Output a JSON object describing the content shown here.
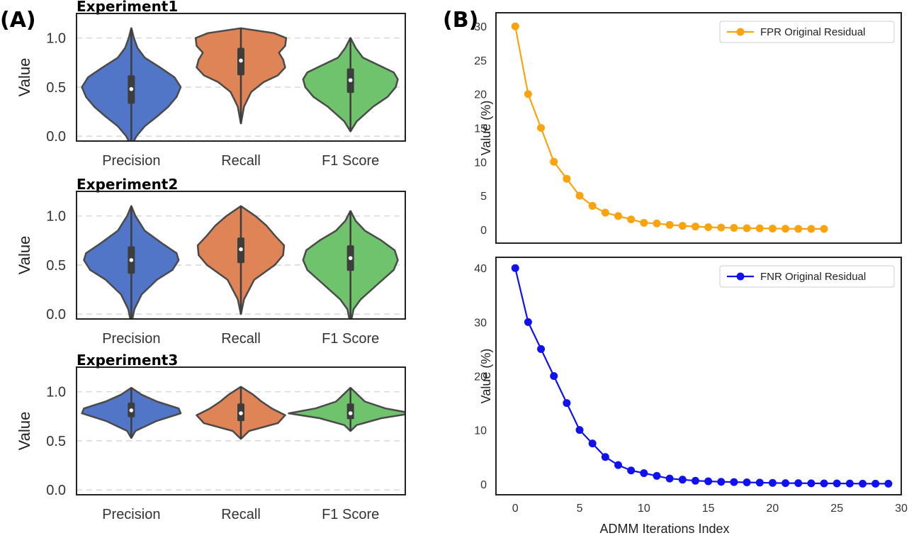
{
  "panels": {
    "a_label": "(A)",
    "b_label": "(B)"
  },
  "colors": {
    "precision": "#5176c8",
    "recall": "#de8456",
    "f1": "#70c36d",
    "violin_edge": "#4a4a4a",
    "box": "#3d3d3d",
    "fpr": "#f9a40e",
    "fnr": "#1010f0",
    "grid": "#d8d8d8"
  },
  "chart_data": [
    {
      "type": "violin",
      "title": "Experiment1",
      "ylabel": "Value",
      "categories": [
        "Precision",
        "Recall",
        "F1 Score"
      ],
      "yticks": [
        "0.0",
        "0.5",
        "1.0"
      ],
      "ylim": [
        -0.05,
        1.25
      ],
      "grid": true,
      "series": [
        {
          "category": "Precision",
          "median": 0.48,
          "q1": 0.33,
          "q3": 0.62,
          "min": -0.1,
          "max": 1.1,
          "profile": [
            [
              -0.1,
              0.001
            ],
            [
              0.0,
              0.05
            ],
            [
              0.1,
              0.13
            ],
            [
              0.2,
              0.25
            ],
            [
              0.3,
              0.36
            ],
            [
              0.4,
              0.44
            ],
            [
              0.5,
              0.48
            ],
            [
              0.6,
              0.42
            ],
            [
              0.7,
              0.28
            ],
            [
              0.8,
              0.13
            ],
            [
              0.9,
              0.06
            ],
            [
              1.0,
              0.025
            ],
            [
              1.1,
              0.001
            ]
          ]
        },
        {
          "category": "Recall",
          "median": 0.77,
          "q1": 0.62,
          "q3": 0.9,
          "min": 0.13,
          "max": 1.1,
          "profile": [
            [
              0.13,
              0.001
            ],
            [
              0.3,
              0.03
            ],
            [
              0.45,
              0.1
            ],
            [
              0.55,
              0.22
            ],
            [
              0.62,
              0.36
            ],
            [
              0.7,
              0.43
            ],
            [
              0.78,
              0.41
            ],
            [
              0.85,
              0.37
            ],
            [
              0.92,
              0.43
            ],
            [
              1.0,
              0.44
            ],
            [
              1.05,
              0.32
            ],
            [
              1.1,
              0.001
            ]
          ]
        },
        {
          "category": "F1 Score",
          "median": 0.57,
          "q1": 0.44,
          "q3": 0.69,
          "min": 0.05,
          "max": 1.0,
          "profile": [
            [
              0.05,
              0.001
            ],
            [
              0.15,
              0.06
            ],
            [
              0.3,
              0.22
            ],
            [
              0.4,
              0.36
            ],
            [
              0.5,
              0.44
            ],
            [
              0.58,
              0.46
            ],
            [
              0.65,
              0.42
            ],
            [
              0.72,
              0.28
            ],
            [
              0.8,
              0.12
            ],
            [
              0.9,
              0.05
            ],
            [
              1.0,
              0.001
            ]
          ]
        }
      ]
    },
    {
      "type": "violin",
      "title": "Experiment2",
      "ylabel": "Value",
      "categories": [
        "Precision",
        "Recall",
        "F1 Score"
      ],
      "yticks": [
        "0.0",
        "0.5",
        "1.0"
      ],
      "ylim": [
        -0.05,
        1.25
      ],
      "grid": true,
      "series": [
        {
          "category": "Precision",
          "median": 0.55,
          "q1": 0.41,
          "q3": 0.69,
          "min": -0.1,
          "max": 1.1,
          "profile": [
            [
              -0.1,
              0.001
            ],
            [
              0.05,
              0.03
            ],
            [
              0.2,
              0.1
            ],
            [
              0.35,
              0.25
            ],
            [
              0.45,
              0.4
            ],
            [
              0.55,
              0.46
            ],
            [
              0.62,
              0.44
            ],
            [
              0.72,
              0.3
            ],
            [
              0.85,
              0.13
            ],
            [
              1.0,
              0.04
            ],
            [
              1.1,
              0.001
            ]
          ]
        },
        {
          "category": "Recall",
          "median": 0.66,
          "q1": 0.52,
          "q3": 0.78,
          "min": 0.0,
          "max": 1.1,
          "profile": [
            [
              0.0,
              0.001
            ],
            [
              0.15,
              0.03
            ],
            [
              0.35,
              0.13
            ],
            [
              0.5,
              0.33
            ],
            [
              0.6,
              0.41
            ],
            [
              0.7,
              0.42
            ],
            [
              0.8,
              0.33
            ],
            [
              0.9,
              0.25
            ],
            [
              1.0,
              0.14
            ],
            [
              1.1,
              0.001
            ]
          ]
        },
        {
          "category": "F1 Score",
          "median": 0.57,
          "q1": 0.44,
          "q3": 0.7,
          "min": -0.1,
          "max": 1.05,
          "profile": [
            [
              -0.1,
              0.001
            ],
            [
              0.05,
              0.03
            ],
            [
              0.15,
              0.1
            ],
            [
              0.3,
              0.26
            ],
            [
              0.45,
              0.42
            ],
            [
              0.55,
              0.46
            ],
            [
              0.65,
              0.43
            ],
            [
              0.75,
              0.3
            ],
            [
              0.85,
              0.14
            ],
            [
              0.95,
              0.05
            ],
            [
              1.05,
              0.001
            ]
          ]
        }
      ]
    },
    {
      "type": "violin",
      "title": "Experiment3",
      "ylabel": "Value",
      "categories": [
        "Precision",
        "Recall",
        "F1 Score"
      ],
      "yticks": [
        "0.0",
        "0.5",
        "1.0"
      ],
      "ylim": [
        -0.05,
        1.25
      ],
      "grid": true,
      "series": [
        {
          "category": "Precision",
          "median": 0.81,
          "q1": 0.74,
          "q3": 0.89,
          "min": 0.53,
          "max": 1.04,
          "profile": [
            [
              0.53,
              0.001
            ],
            [
              0.6,
              0.04
            ],
            [
              0.7,
              0.24
            ],
            [
              0.78,
              0.48
            ],
            [
              0.83,
              0.46
            ],
            [
              0.9,
              0.25
            ],
            [
              0.97,
              0.1
            ],
            [
              1.04,
              0.001
            ]
          ]
        },
        {
          "category": "Recall",
          "median": 0.78,
          "q1": 0.7,
          "q3": 0.88,
          "min": 0.52,
          "max": 1.05,
          "profile": [
            [
              0.52,
              0.001
            ],
            [
              0.6,
              0.08
            ],
            [
              0.68,
              0.36
            ],
            [
              0.76,
              0.43
            ],
            [
              0.83,
              0.3
            ],
            [
              0.9,
              0.2
            ],
            [
              0.97,
              0.12
            ],
            [
              1.05,
              0.001
            ]
          ]
        },
        {
          "category": "F1 Score",
          "median": 0.78,
          "q1": 0.72,
          "q3": 0.88,
          "min": 0.6,
          "max": 1.04,
          "profile": [
            [
              0.6,
              0.001
            ],
            [
              0.66,
              0.06
            ],
            [
              0.73,
              0.3
            ],
            [
              0.78,
              0.6
            ],
            [
              0.83,
              0.34
            ],
            [
              0.9,
              0.14
            ],
            [
              0.97,
              0.07
            ],
            [
              1.04,
              0.001
            ]
          ]
        }
      ]
    },
    {
      "type": "line",
      "ylabel": "Value (%)",
      "xlim": [
        -1.5,
        30
      ],
      "ylim": [
        -2,
        32
      ],
      "xticks": [
        0,
        5,
        10,
        15,
        20,
        25,
        30
      ],
      "yticks": [
        0,
        5,
        10,
        15,
        20,
        25,
        30
      ],
      "legend_position": "top-right",
      "grid": false,
      "series": [
        {
          "name": "FPR Original Residual",
          "x": [
            0,
            1,
            2,
            3,
            4,
            5,
            6,
            7,
            8,
            9,
            10,
            11,
            12,
            13,
            14,
            15,
            16,
            17,
            18,
            19,
            20,
            21,
            22,
            23,
            24
          ],
          "y": [
            30,
            20,
            15,
            10,
            7.5,
            5,
            3.5,
            2.5,
            2,
            1.5,
            1,
            0.9,
            0.7,
            0.55,
            0.45,
            0.35,
            0.3,
            0.25,
            0.2,
            0.18,
            0.15,
            0.12,
            0.1,
            0.1,
            0.1
          ]
        }
      ]
    },
    {
      "type": "line",
      "ylabel": "Value (%)",
      "xlabel": "ADMM Iterations Index",
      "xlim": [
        -1.5,
        30
      ],
      "ylim": [
        -2,
        42
      ],
      "xticks": [
        0,
        5,
        10,
        15,
        20,
        25,
        30
      ],
      "yticks": [
        0,
        10,
        20,
        30,
        40
      ],
      "legend_position": "top-right",
      "grid": false,
      "series": [
        {
          "name": "FNR Original Residual",
          "x": [
            0,
            1,
            2,
            3,
            4,
            5,
            6,
            7,
            8,
            9,
            10,
            11,
            12,
            13,
            14,
            15,
            16,
            17,
            18,
            19,
            20,
            21,
            22,
            23,
            24,
            25,
            26,
            27,
            28,
            29
          ],
          "y": [
            40,
            30,
            25,
            20,
            15,
            10,
            7.5,
            5,
            3.5,
            2.5,
            2,
            1.5,
            1,
            0.8,
            0.6,
            0.5,
            0.4,
            0.35,
            0.3,
            0.25,
            0.2,
            0.15,
            0.15,
            0.12,
            0.1,
            0.1,
            0.08,
            0.05,
            0.05,
            0.05
          ]
        }
      ]
    }
  ]
}
